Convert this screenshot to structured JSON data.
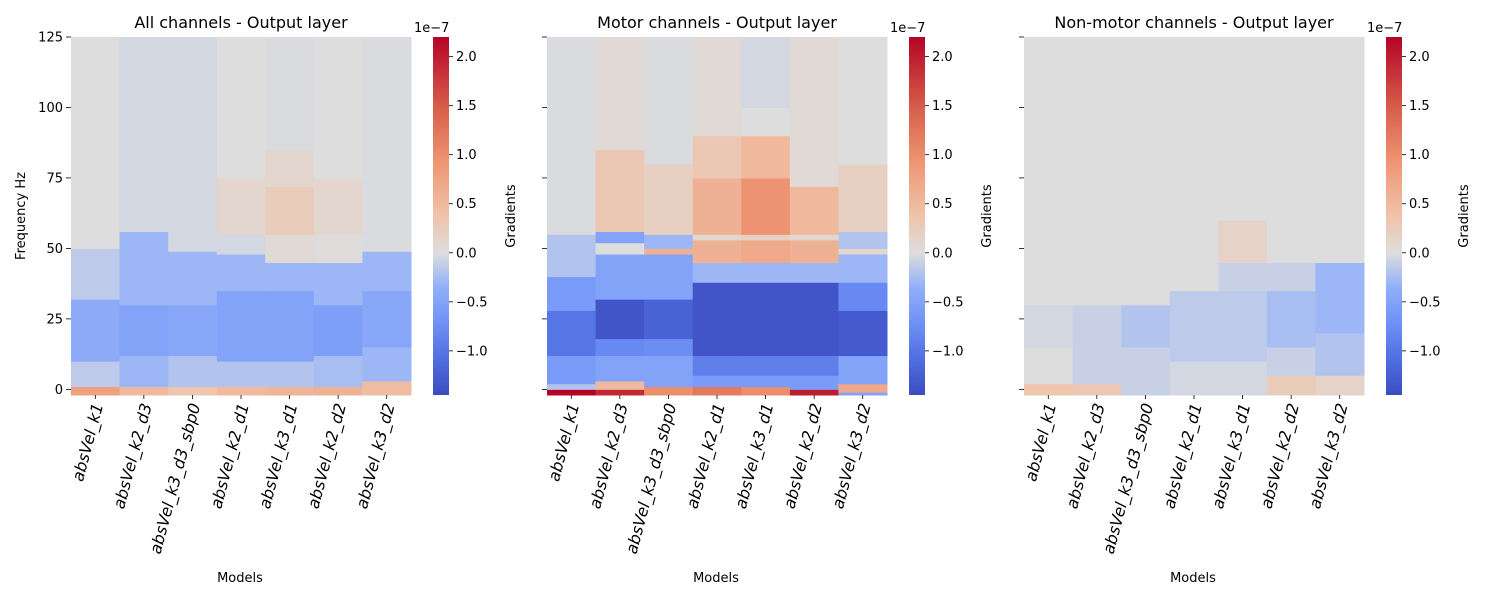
{
  "chart_data": {
    "type": "heatmap",
    "y_axis": {
      "label": "Frequency Hz",
      "range": [
        -2,
        125
      ],
      "ticks": [
        0,
        25,
        50,
        75,
        100,
        125
      ]
    },
    "x_axis": {
      "label": "Models"
    },
    "colorbar": {
      "label": "Gradients",
      "multiplier": "1e−7",
      "range": [
        -1.45,
        2.2
      ],
      "ticks": [
        {
          "value": -1.0,
          "label": "−1.0"
        },
        {
          "value": -0.5,
          "label": "−0.5"
        },
        {
          "value": 0.0,
          "label": "0.0"
        },
        {
          "value": 0.5,
          "label": "0.5"
        },
        {
          "value": 1.0,
          "label": "1.0"
        },
        {
          "value": 1.5,
          "label": "1.5"
        },
        {
          "value": 2.0,
          "label": "2.0"
        }
      ],
      "colormap": "coolwarm"
    },
    "categories": [
      "absVel_k1",
      "absVel_k2_d3",
      "absVel_k3_d3_sbp0",
      "absVel_k2_d1",
      "absVel_k3_d1",
      "absVel_k2_d2",
      "absVel_k3_d2"
    ],
    "panels": [
      {
        "title": "All channels - Output layer",
        "show_y_ticks": true,
        "series": [
          {
            "name": "absVel_k1",
            "bands": [
              [
                -2,
                1,
                0.8
              ],
              [
                1,
                10,
                -0.15
              ],
              [
                10,
                32,
                -0.4
              ],
              [
                32,
                50,
                -0.15
              ],
              [
                50,
                125,
                0.0
              ]
            ]
          },
          {
            "name": "absVel_k2_d3",
            "bands": [
              [
                -2,
                1,
                0.5
              ],
              [
                1,
                12,
                -0.3
              ],
              [
                12,
                30,
                -0.5
              ],
              [
                30,
                56,
                -0.3
              ],
              [
                56,
                125,
                -0.05
              ]
            ]
          },
          {
            "name": "absVel_k3_d3_sbp0",
            "bands": [
              [
                -2,
                1,
                0.35
              ],
              [
                1,
                12,
                -0.2
              ],
              [
                12,
                30,
                -0.45
              ],
              [
                30,
                49,
                -0.3
              ],
              [
                49,
                125,
                -0.05
              ]
            ]
          },
          {
            "name": "absVel_k2_d1",
            "bands": [
              [
                -2,
                1,
                0.5
              ],
              [
                1,
                10,
                -0.2
              ],
              [
                10,
                35,
                -0.5
              ],
              [
                35,
                48,
                -0.3
              ],
              [
                48,
                55,
                -0.05
              ],
              [
                55,
                75,
                0.1
              ],
              [
                75,
                125,
                0.0
              ]
            ]
          },
          {
            "name": "absVel_k3_d1",
            "bands": [
              [
                -2,
                1,
                0.55
              ],
              [
                1,
                10,
                -0.2
              ],
              [
                10,
                35,
                -0.5
              ],
              [
                35,
                45,
                -0.3
              ],
              [
                45,
                55,
                0.05
              ],
              [
                55,
                72,
                0.25
              ],
              [
                72,
                85,
                0.1
              ],
              [
                85,
                125,
                -0.02
              ]
            ]
          },
          {
            "name": "absVel_k2_d2",
            "bands": [
              [
                -2,
                1,
                0.6
              ],
              [
                1,
                12,
                -0.25
              ],
              [
                12,
                30,
                -0.55
              ],
              [
                30,
                45,
                -0.3
              ],
              [
                45,
                55,
                0.02
              ],
              [
                55,
                75,
                0.1
              ],
              [
                75,
                125,
                0.0
              ]
            ]
          },
          {
            "name": "absVel_k3_d2",
            "bands": [
              [
                -2,
                3,
                0.45
              ],
              [
                3,
                15,
                -0.3
              ],
              [
                15,
                35,
                -0.45
              ],
              [
                35,
                49,
                -0.3
              ],
              [
                49,
                125,
                -0.02
              ]
            ]
          }
        ]
      },
      {
        "title": "Motor channels - Output layer",
        "show_y_ticks": false,
        "series": [
          {
            "name": "absVel_k1",
            "bands": [
              [
                -2,
                0,
                2.2
              ],
              [
                0,
                2,
                -0.2
              ],
              [
                2,
                12,
                -0.6
              ],
              [
                12,
                28,
                -1.0
              ],
              [
                28,
                40,
                -0.6
              ],
              [
                40,
                55,
                -0.2
              ],
              [
                55,
                125,
                -0.02
              ]
            ]
          },
          {
            "name": "absVel_k2_d3",
            "bands": [
              [
                -2,
                0,
                1.9
              ],
              [
                0,
                3,
                0.5
              ],
              [
                3,
                12,
                -0.5
              ],
              [
                12,
                18,
                -0.8
              ],
              [
                18,
                32,
                -1.35
              ],
              [
                32,
                48,
                -0.5
              ],
              [
                48,
                52,
                0.0
              ],
              [
                52,
                56,
                -0.5
              ],
              [
                56,
                85,
                0.3
              ],
              [
                85,
                125,
                0.05
              ]
            ]
          },
          {
            "name": "absVel_k3_d3_sbp0",
            "bands": [
              [
                -2,
                1,
                1.0
              ],
              [
                1,
                12,
                -0.5
              ],
              [
                12,
                18,
                -0.75
              ],
              [
                18,
                32,
                -1.2
              ],
              [
                32,
                48,
                -0.5
              ],
              [
                48,
                50,
                0.6
              ],
              [
                50,
                55,
                -0.3
              ],
              [
                55,
                80,
                0.2
              ],
              [
                80,
                125,
                -0.02
              ]
            ]
          },
          {
            "name": "absVel_k2_d1",
            "bands": [
              [
                -2,
                1,
                1.2
              ],
              [
                1,
                5,
                -0.6
              ],
              [
                5,
                12,
                -0.9
              ],
              [
                12,
                38,
                -1.35
              ],
              [
                38,
                45,
                -0.3
              ],
              [
                45,
                53,
                0.6
              ],
              [
                53,
                55,
                0.1
              ],
              [
                55,
                75,
                0.6
              ],
              [
                75,
                90,
                0.3
              ],
              [
                90,
                125,
                0.05
              ]
            ]
          },
          {
            "name": "absVel_k3_d1",
            "bands": [
              [
                -2,
                1,
                1.0
              ],
              [
                1,
                5,
                -0.6
              ],
              [
                5,
                12,
                -0.9
              ],
              [
                12,
                38,
                -1.35
              ],
              [
                38,
                45,
                -0.3
              ],
              [
                45,
                53,
                0.7
              ],
              [
                53,
                55,
                0.2
              ],
              [
                55,
                75,
                0.95
              ],
              [
                75,
                90,
                0.5
              ],
              [
                90,
                100,
                0.0
              ],
              [
                100,
                125,
                -0.05
              ]
            ]
          },
          {
            "name": "absVel_k2_d2",
            "bands": [
              [
                -2,
                0,
                2.0
              ],
              [
                0,
                5,
                -0.6
              ],
              [
                5,
                12,
                -0.9
              ],
              [
                12,
                38,
                -1.35
              ],
              [
                38,
                45,
                -0.3
              ],
              [
                45,
                53,
                0.6
              ],
              [
                53,
                55,
                0.1
              ],
              [
                55,
                72,
                0.5
              ],
              [
                72,
                125,
                0.05
              ]
            ]
          },
          {
            "name": "absVel_k3_d2",
            "bands": [
              [
                -2,
                -1,
                -0.5
              ],
              [
                -1,
                2,
                0.7
              ],
              [
                2,
                12,
                -0.5
              ],
              [
                12,
                28,
                -1.3
              ],
              [
                28,
                38,
                -0.8
              ],
              [
                38,
                48,
                -0.3
              ],
              [
                48,
                50,
                0.1
              ],
              [
                50,
                56,
                -0.2
              ],
              [
                56,
                80,
                0.2
              ],
              [
                80,
                125,
                0.0
              ]
            ]
          }
        ]
      },
      {
        "title": "Non-motor channels - Output layer",
        "show_y_ticks": false,
        "series": [
          {
            "name": "absVel_k1",
            "bands": [
              [
                -2,
                2,
                0.35
              ],
              [
                2,
                15,
                0.0
              ],
              [
                15,
                30,
                -0.05
              ],
              [
                30,
                125,
                0.0
              ]
            ]
          },
          {
            "name": "absVel_k2_d3",
            "bands": [
              [
                -2,
                2,
                0.3
              ],
              [
                2,
                15,
                -0.1
              ],
              [
                15,
                30,
                -0.1
              ],
              [
                30,
                125,
                0.0
              ]
            ]
          },
          {
            "name": "absVel_k3_d3_sbp0",
            "bands": [
              [
                -2,
                15,
                -0.1
              ],
              [
                15,
                30,
                -0.2
              ],
              [
                30,
                125,
                0.0
              ]
            ]
          },
          {
            "name": "absVel_k2_d1",
            "bands": [
              [
                -2,
                10,
                -0.05
              ],
              [
                10,
                35,
                -0.15
              ],
              [
                35,
                125,
                0.0
              ]
            ]
          },
          {
            "name": "absVel_k3_d1",
            "bands": [
              [
                -2,
                10,
                -0.05
              ],
              [
                10,
                35,
                -0.15
              ],
              [
                35,
                45,
                -0.1
              ],
              [
                45,
                60,
                0.15
              ],
              [
                60,
                125,
                0.0
              ]
            ]
          },
          {
            "name": "absVel_k2_d2",
            "bands": [
              [
                -2,
                5,
                0.25
              ],
              [
                5,
                15,
                -0.1
              ],
              [
                15,
                35,
                -0.25
              ],
              [
                35,
                45,
                -0.1
              ],
              [
                45,
                125,
                0.0
              ]
            ]
          },
          {
            "name": "absVel_k3_d2",
            "bands": [
              [
                -2,
                5,
                0.15
              ],
              [
                5,
                20,
                -0.2
              ],
              [
                20,
                45,
                -0.3
              ],
              [
                45,
                125,
                0.0
              ]
            ]
          }
        ]
      }
    ]
  }
}
